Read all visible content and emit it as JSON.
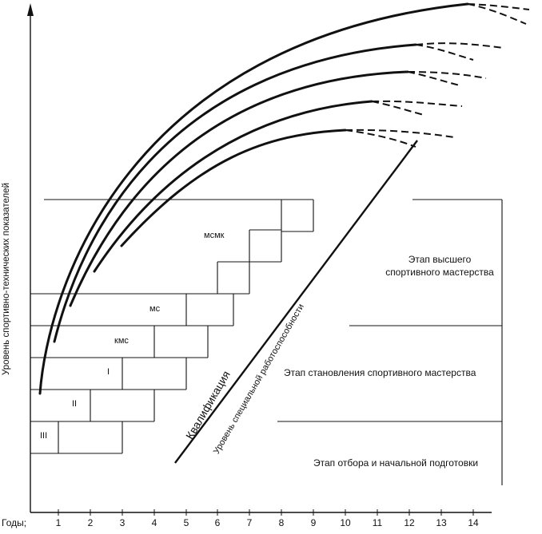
{
  "y_axis_label": "Уровень спортивно-технических показателей",
  "x_axis_label": "Годы;",
  "x_ticks": [
    "1",
    "2",
    "3",
    "4",
    "5",
    "6",
    "7",
    "8",
    "9",
    "10",
    "11",
    "12",
    "13",
    "14"
  ],
  "grades": {
    "iii": "III",
    "ii": "II",
    "i": "I",
    "kms": "кмс",
    "ms": "мс",
    "msmk": "мсмк"
  },
  "diagonal": {
    "qualification": "Квалификация",
    "work_capacity": "Уровень специальной работоспособности"
  },
  "stages": {
    "top_line1": "Этап высшего",
    "top_line2": "спортивного мастерства",
    "middle": "Этап становления спортивного мастерства",
    "bottom": "Этап отбора и начальной подготовки"
  }
}
